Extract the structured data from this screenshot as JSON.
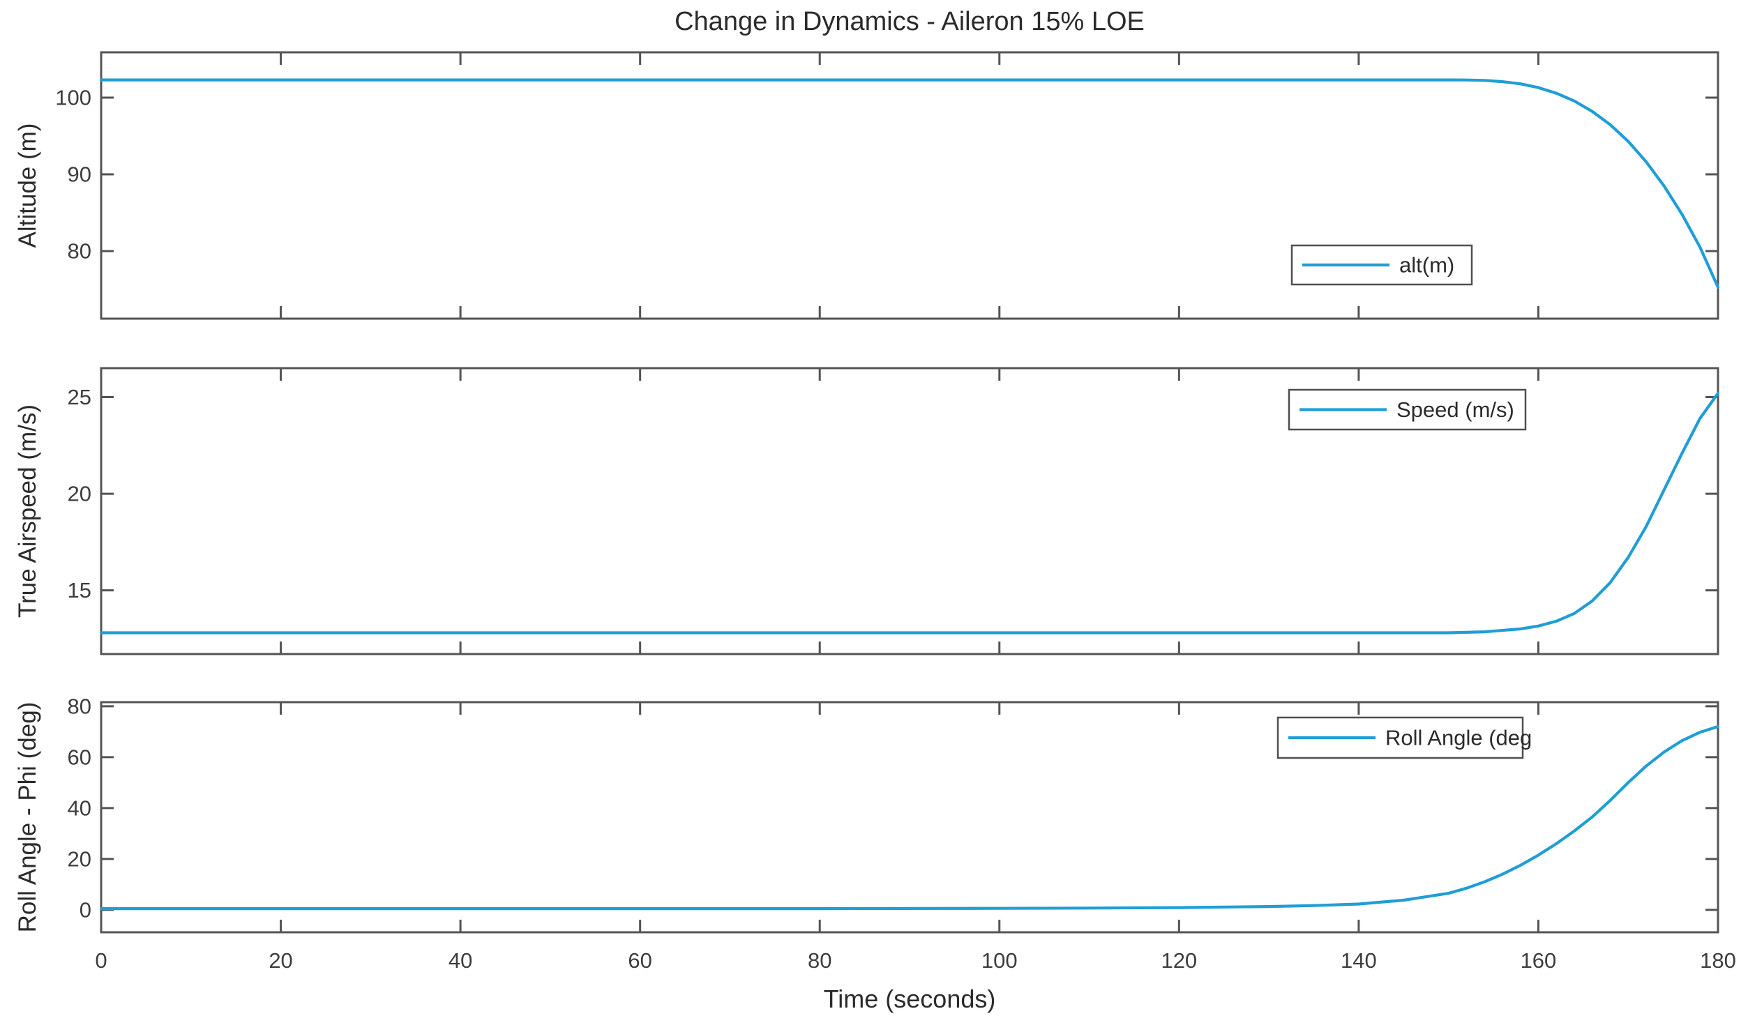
{
  "figure": {
    "title": "Change in Dynamics - Aileron 15% LOE",
    "xlabel": "Time (seconds)",
    "colors": {
      "line": "#1f9ed6",
      "axis": "#545454",
      "tick_text": "#3d3d3d",
      "legend_border": "#4f4f4f",
      "background": "#ffffff"
    }
  },
  "chart_data": [
    {
      "id": "altitude",
      "type": "line",
      "ylabel": "Altitude (m)",
      "legend": "alt(m)",
      "legend_position": "inside right, lower half",
      "grid": false,
      "xlim": [
        0,
        180
      ],
      "ylim": [
        71.2,
        105.9
      ],
      "yticks": [
        80,
        90,
        100
      ],
      "xticks": [
        0,
        20,
        40,
        60,
        80,
        100,
        120,
        140,
        160,
        180
      ],
      "show_xticklabels": false,
      "x": [
        0,
        20,
        40,
        60,
        80,
        100,
        120,
        140,
        150,
        152,
        154,
        156,
        158,
        160,
        162,
        164,
        166,
        168,
        170,
        172,
        174,
        176,
        178,
        180
      ],
      "y": [
        102.3,
        102.3,
        102.3,
        102.3,
        102.3,
        102.3,
        102.3,
        102.3,
        102.3,
        102.29,
        102.24,
        102.08,
        101.79,
        101.3,
        100.57,
        99.56,
        98.2,
        96.47,
        94.3,
        91.64,
        88.48,
        84.78,
        80.51,
        75.3
      ]
    },
    {
      "id": "airspeed",
      "type": "line",
      "ylabel": "True Airspeed (m/s)",
      "legend": "Speed (m/s)",
      "legend_position": "inside top right",
      "grid": false,
      "xlim": [
        0,
        180
      ],
      "ylim": [
        11.7,
        26.5
      ],
      "yticks": [
        15,
        20,
        25
      ],
      "xticks": [
        0,
        20,
        40,
        60,
        80,
        100,
        120,
        140,
        160,
        180
      ],
      "show_xticklabels": false,
      "x": [
        0,
        20,
        40,
        60,
        80,
        100,
        120,
        140,
        150,
        154,
        158,
        160,
        162,
        164,
        166,
        168,
        170,
        172,
        174,
        176,
        178,
        180
      ],
      "y": [
        12.8,
        12.8,
        12.8,
        12.8,
        12.8,
        12.8,
        12.8,
        12.8,
        12.8,
        12.85,
        13.0,
        13.15,
        13.4,
        13.8,
        14.45,
        15.4,
        16.7,
        18.3,
        20.2,
        22.1,
        23.9,
        25.2
      ]
    },
    {
      "id": "roll-angle",
      "type": "line",
      "ylabel": "Roll Angle - Phi (deg)",
      "legend": "Roll Angle (deg",
      "legend_position": "inside top right",
      "grid": false,
      "xlim": [
        0,
        180
      ],
      "ylim": [
        -8.8,
        81.6
      ],
      "yticks": [
        0,
        20,
        40,
        60,
        80
      ],
      "xticks": [
        0,
        20,
        40,
        60,
        80,
        100,
        120,
        140,
        160,
        180
      ],
      "show_xticklabels": true,
      "x": [
        0,
        20,
        40,
        60,
        80,
        100,
        110,
        120,
        130,
        135,
        140,
        145,
        150,
        152,
        154,
        156,
        158,
        160,
        162,
        164,
        166,
        168,
        170,
        172,
        174,
        176,
        178,
        180
      ],
      "y": [
        0.5,
        0.5,
        0.5,
        0.5,
        0.5,
        0.6,
        0.7,
        0.9,
        1.3,
        1.7,
        2.3,
        3.8,
        6.5,
        8.5,
        11.0,
        14.0,
        17.5,
        21.5,
        26.0,
        31.0,
        36.5,
        43.0,
        50.0,
        56.5,
        62.0,
        66.5,
        69.8,
        72.0
      ]
    }
  ]
}
